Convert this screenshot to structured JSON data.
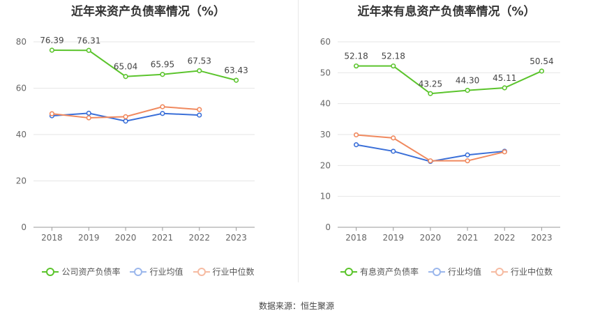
{
  "colors": {
    "company": "#5bc42c",
    "avg": "#3a6fd8",
    "median": "#f0895e",
    "grid": "#e6e6e6",
    "axis": "#999999"
  },
  "source_text": "数据来源：恒生聚源",
  "chart_data": [
    {
      "type": "line",
      "title": "近年来资产负债率情况（%）",
      "categories": [
        "2018",
        "2019",
        "2020",
        "2021",
        "2022",
        "2023"
      ],
      "ylim": [
        0,
        80
      ],
      "yticks": [
        0,
        20,
        40,
        60,
        80
      ],
      "series": [
        {
          "name": "公司资产负债率",
          "values": [
            76.39,
            76.31,
            65.04,
            65.95,
            67.53,
            63.43
          ],
          "labels": [
            "76.39",
            "76.31",
            "65.04",
            "65.95",
            "67.53",
            "63.43"
          ]
        },
        {
          "name": "行业均值",
          "values": [
            48.1,
            49.2,
            45.8,
            49.1,
            48.4,
            null
          ]
        },
        {
          "name": "行业中位数",
          "values": [
            49.0,
            47.2,
            47.7,
            52.0,
            50.8,
            null
          ]
        }
      ]
    },
    {
      "type": "line",
      "title": "近年来有息资产负债率情况（%）",
      "categories": [
        "2018",
        "2019",
        "2020",
        "2021",
        "2022",
        "2023"
      ],
      "ylim": [
        0,
        60
      ],
      "yticks": [
        0,
        10,
        20,
        30,
        40,
        50,
        60
      ],
      "series": [
        {
          "name": "有息资产负债率",
          "values": [
            52.18,
            52.18,
            43.25,
            44.3,
            45.11,
            50.54
          ],
          "labels": [
            "52.18",
            "52.18",
            "43.25",
            "44.30",
            "45.11",
            "50.54"
          ]
        },
        {
          "name": "行业均值",
          "values": [
            26.7,
            24.6,
            21.3,
            23.4,
            24.6,
            null
          ]
        },
        {
          "name": "行业中位数",
          "values": [
            29.9,
            28.9,
            21.5,
            21.5,
            24.4,
            null
          ]
        }
      ]
    }
  ]
}
